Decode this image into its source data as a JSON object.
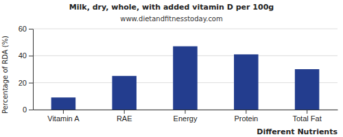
{
  "chart_data": {
    "type": "bar",
    "title": "Milk, dry, whole, with added vitamin D per 100g",
    "subtitle": "www.dietandfitnesstoday.com",
    "xlabel": "Different Nutrients",
    "ylabel": "Percentage of RDA (%)",
    "categories": [
      "Vitamin A",
      "RAE",
      "Energy",
      "Protein",
      "Total Fat"
    ],
    "values": [
      9,
      25,
      47,
      41,
      30
    ],
    "color": "#233d8e",
    "ylim": [
      0,
      60
    ],
    "yticks": [
      0,
      20,
      40,
      60
    ],
    "grid": true
  }
}
